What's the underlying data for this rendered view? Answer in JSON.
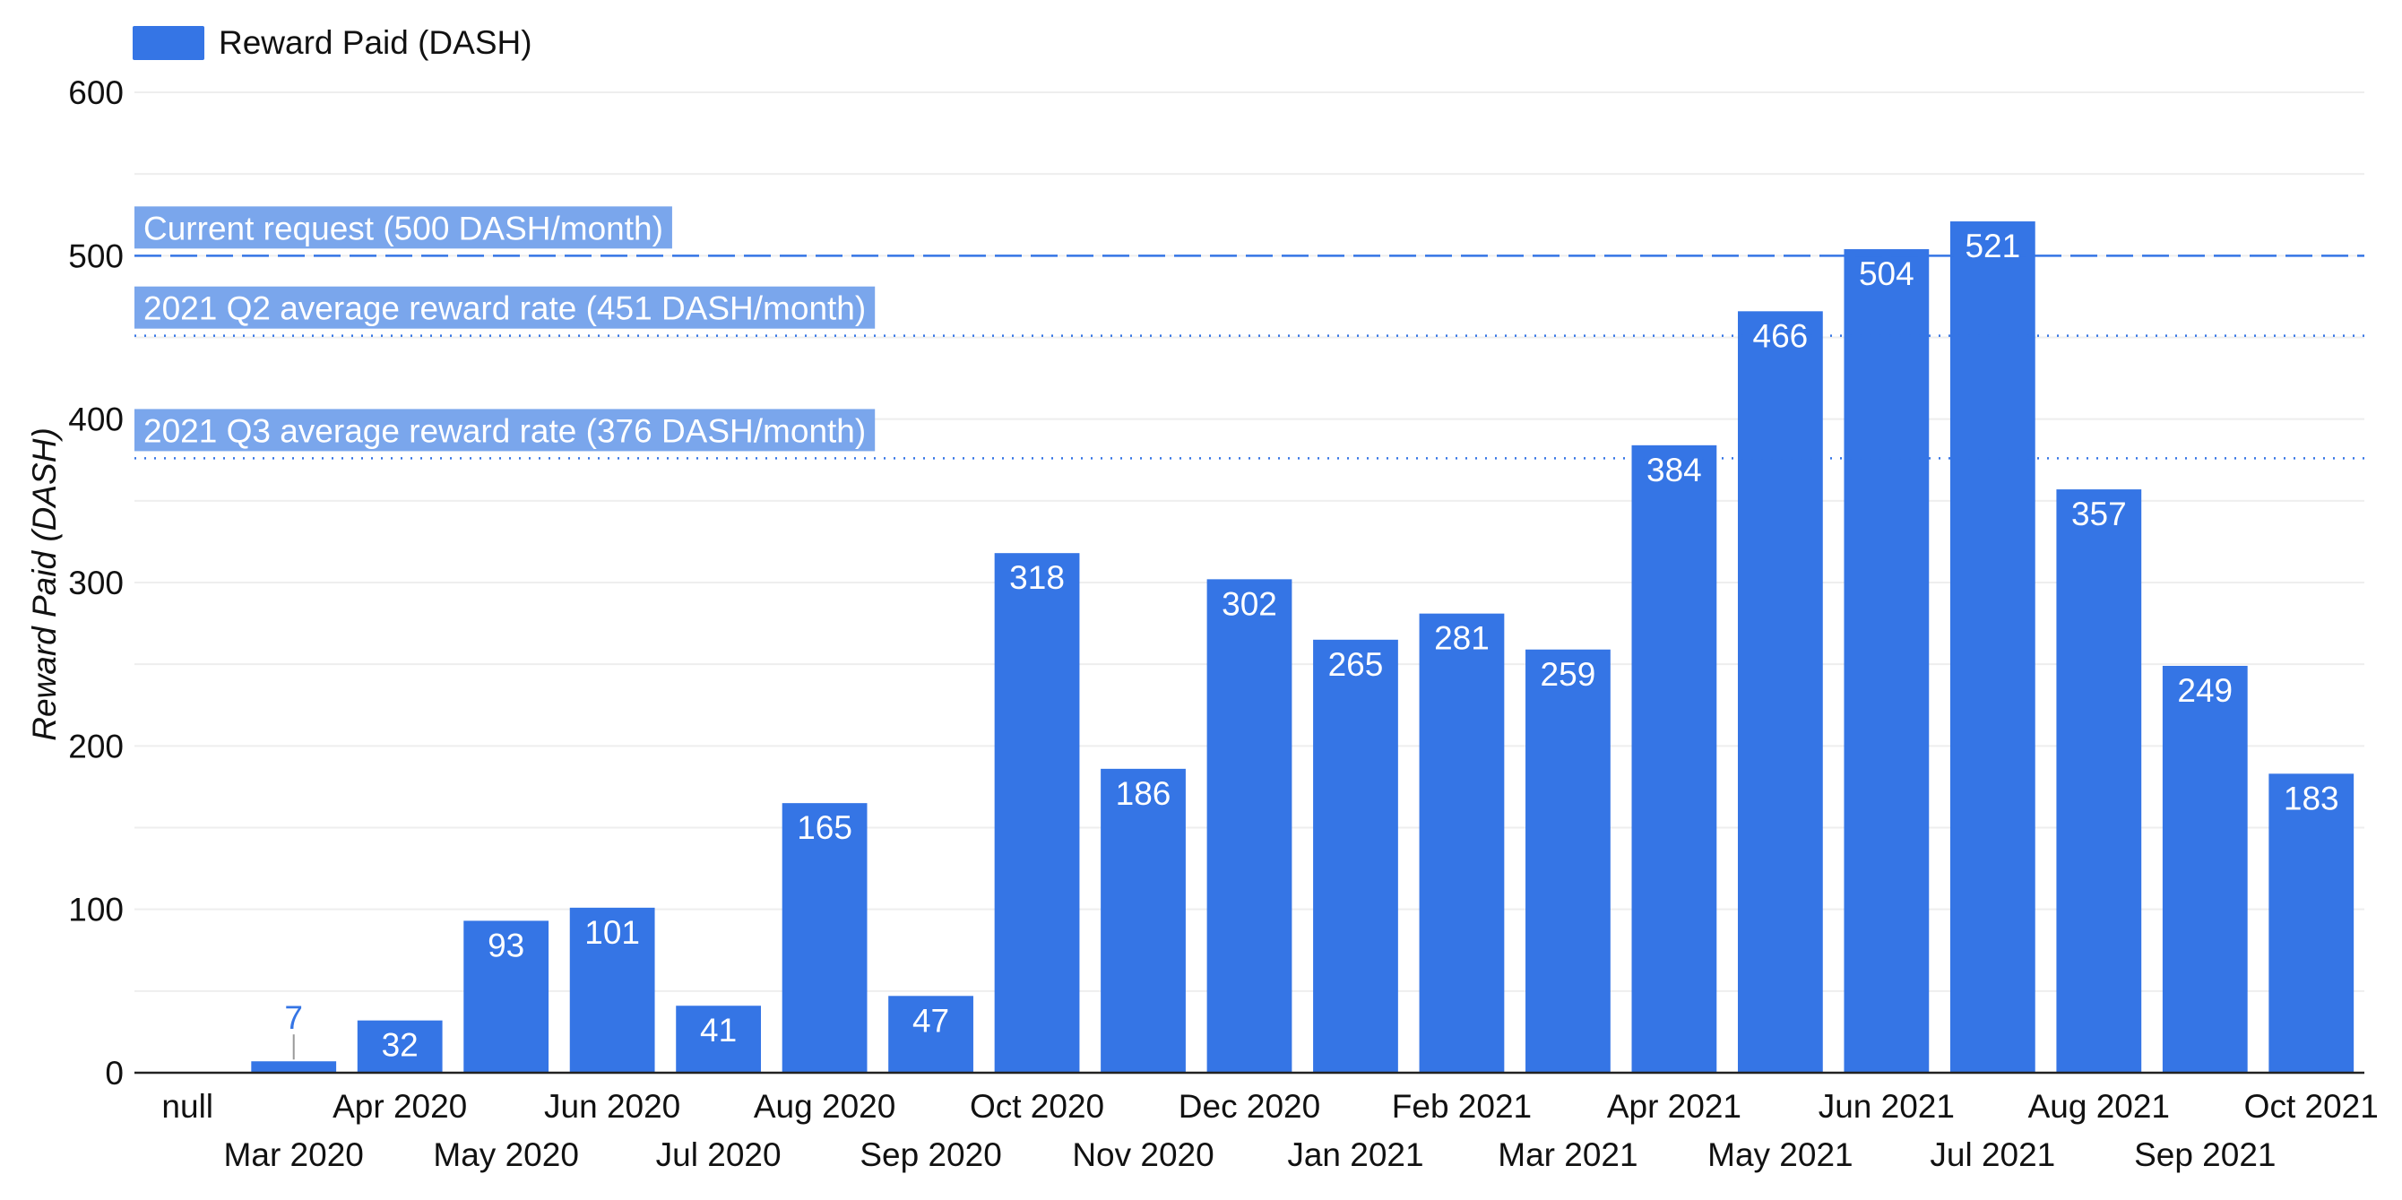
{
  "colors": {
    "bar": "#3575e5",
    "bar_label_inside": "#ffffff",
    "bar_label_outside": "#3575e5",
    "gridline": "#eeeeee",
    "axis": "#222222",
    "text": "#111111",
    "reference_band": "#7aa6ec",
    "reference_line": "#3575e5"
  },
  "chart_data": {
    "type": "bar",
    "title": "",
    "xlabel": "",
    "ylabel": "Reward Paid (DASH)",
    "ylim": [
      0,
      600
    ],
    "yticks": [
      0,
      100,
      200,
      300,
      400,
      500,
      600
    ],
    "grid": true,
    "legend_position": "top-left",
    "series": [
      {
        "name": "Reward Paid (DASH)",
        "values": [
          null,
          7,
          32,
          93,
          101,
          41,
          165,
          47,
          318,
          186,
          302,
          265,
          281,
          259,
          384,
          466,
          504,
          521,
          357,
          249,
          183
        ]
      }
    ],
    "categories": [
      "null",
      "Mar 2020",
      "Apr 2020",
      "May 2020",
      "Jun 2020",
      "Jul 2020",
      "Aug 2020",
      "Sep 2020",
      "Oct 2020",
      "Nov 2020",
      "Dec 2020",
      "Jan 2021",
      "Feb 2021",
      "Mar 2021",
      "Apr 2021",
      "May 2021",
      "Jun 2021",
      "Jul 2021",
      "Aug 2021",
      "Sep 2021",
      "Oct 2021"
    ],
    "reference_lines": [
      {
        "label": "Current request (500 DASH/month)",
        "value": 500,
        "style": "dashed"
      },
      {
        "label": "2021 Q2 average reward rate (451 DASH/month)",
        "value": 451,
        "style": "dotted"
      },
      {
        "label": "2021 Q3 average reward rate (376 DASH/month)",
        "value": 376,
        "style": "dotted"
      }
    ]
  }
}
